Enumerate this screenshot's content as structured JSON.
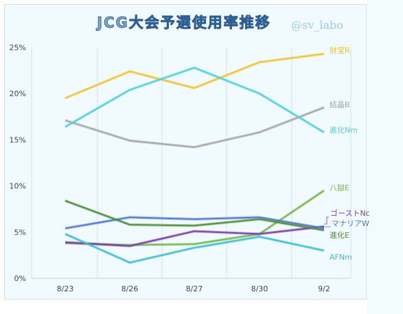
{
  "chart_data": {
    "type": "line",
    "title": "JCG大会予選使用率推移",
    "watermark": "@sv_labo",
    "categories": [
      "8/23",
      "8/26",
      "8/27",
      "8/30",
      "9/2"
    ],
    "y_tick_labels": [
      "0%",
      "5%",
      "10%",
      "15%",
      "20%",
      "25%"
    ],
    "ylim": [
      0,
      25
    ],
    "grid": "vertical",
    "series": [
      {
        "name": "財宝R",
        "color": "#f1c232",
        "values": [
          19.5,
          22.4,
          20.6,
          23.4,
          24.3
        ]
      },
      {
        "name": "結晶B",
        "color": "#a6a6a6",
        "values": [
          17.1,
          14.9,
          14.2,
          15.8,
          18.5
        ]
      },
      {
        "name": "進化Nm",
        "color": "#4fd0dc",
        "values": [
          16.4,
          20.4,
          22.8,
          20.0,
          15.8
        ]
      },
      {
        "name": "八獄E",
        "color": "#7ab84e",
        "values": [
          3.8,
          3.6,
          3.7,
          4.8,
          9.5
        ]
      },
      {
        "name": "ゴーストNc",
        "color": "#7a3fae",
        "values": [
          3.9,
          3.5,
          5.1,
          4.8,
          5.6
        ]
      },
      {
        "name": "マナリアW",
        "color": "#5577cc",
        "values": [
          5.4,
          6.6,
          6.4,
          6.6,
          5.4
        ]
      },
      {
        "name": "進化E",
        "color": "#4e8f3a",
        "values": [
          8.4,
          5.8,
          5.7,
          6.4,
          5.2
        ]
      },
      {
        "name": "AFNm",
        "color": "#3ebfcf",
        "values": [
          4.8,
          1.7,
          3.3,
          4.5,
          3.0
        ]
      }
    ]
  }
}
